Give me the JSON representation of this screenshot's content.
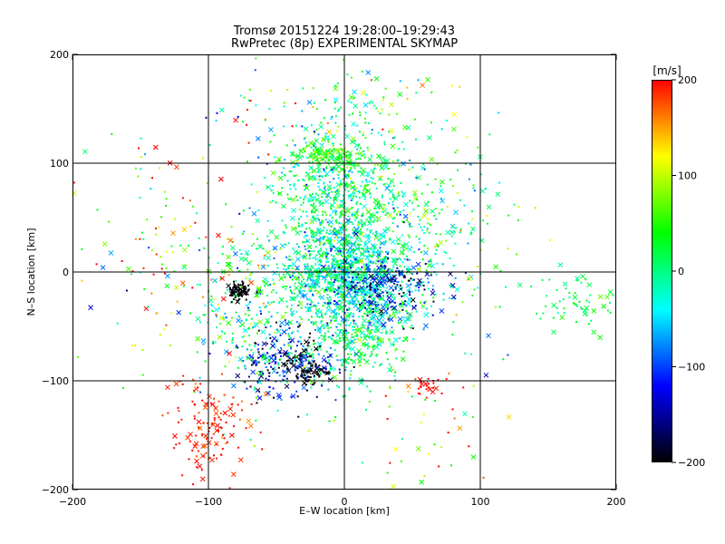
{
  "chart_data": {
    "type": "scatter",
    "title": "Tromsø 20151224 19:28:00–19:29:43",
    "subtitle": "RwPretec (8p) EXPERIMENTAL SKYMAP",
    "xlabel": "E–W location [km]",
    "ylabel": "N–S location [km]",
    "xlim": [
      -200,
      200
    ],
    "ylim": [
      -200,
      200
    ],
    "x_ticks": [
      -200,
      -100,
      0,
      100,
      200
    ],
    "y_ticks": [
      -200,
      -100,
      0,
      100,
      200
    ],
    "grid": true,
    "colorbar": {
      "label": "[m/s]",
      "range": [
        -200,
        200
      ],
      "ticks": [
        200,
        100,
        0,
        -100,
        -200
      ],
      "colors": [
        "#ff0000",
        "#ffff00",
        "#00ff00",
        "#00ffff",
        "#0000ff",
        "#000000"
      ]
    },
    "markers": [
      "x",
      "dot"
    ],
    "clusters": [
      {
        "x": 0,
        "y": 0,
        "sx": 25,
        "sy": 30,
        "n": 1100,
        "v": -20,
        "sv": 45
      },
      {
        "x": -8,
        "y": 80,
        "sx": 22,
        "sy": 30,
        "n": 500,
        "v": 10,
        "sv": 45
      },
      {
        "x": -15,
        "y": 108,
        "sx": 14,
        "sy": 4,
        "n": 120,
        "v": 50,
        "sv": 30
      },
      {
        "x": 10,
        "y": -60,
        "sx": 20,
        "sy": 28,
        "n": 300,
        "v": 20,
        "sv": 35
      },
      {
        "x": 30,
        "y": -15,
        "sx": 20,
        "sy": 15,
        "n": 250,
        "v": -120,
        "sv": 50
      },
      {
        "x": -40,
        "y": -82,
        "sx": 18,
        "sy": 16,
        "n": 250,
        "v": -140,
        "sv": 60
      },
      {
        "x": -70,
        "y": -40,
        "sx": 20,
        "sy": 40,
        "n": 250,
        "v": -5,
        "sv": 60
      },
      {
        "x": -78,
        "y": -17,
        "sx": 4,
        "sy": 4,
        "n": 70,
        "v": -200,
        "sv": 5
      },
      {
        "x": -28,
        "y": -90,
        "sx": 8,
        "sy": 6,
        "n": 60,
        "v": -200,
        "sv": 10
      },
      {
        "x": -100,
        "y": -140,
        "sx": 15,
        "sy": 25,
        "n": 130,
        "v": 190,
        "sv": 15
      },
      {
        "x": 170,
        "y": -30,
        "sx": 15,
        "sy": 15,
        "n": 60,
        "v": 20,
        "sv": 20
      },
      {
        "x": 60,
        "y": -105,
        "sx": 6,
        "sy": 6,
        "n": 25,
        "v": 195,
        "sv": 10
      },
      {
        "x": 40,
        "y": 50,
        "sx": 30,
        "sy": 40,
        "n": 200,
        "v": 10,
        "sv": 50
      },
      {
        "x": -120,
        "y": 20,
        "sx": 40,
        "sy": 50,
        "n": 150,
        "v": 80,
        "sv": 100
      },
      {
        "x": 80,
        "y": 20,
        "sx": 30,
        "sy": 50,
        "n": 120,
        "v": 0,
        "sv": 60
      },
      {
        "x": 20,
        "y": 150,
        "sx": 30,
        "sy": 20,
        "n": 80,
        "v": 40,
        "sv": 80
      },
      {
        "x": -60,
        "y": 140,
        "sx": 25,
        "sy": 30,
        "n": 40,
        "v": 60,
        "sv": 100
      },
      {
        "x": 70,
        "y": -150,
        "sx": 30,
        "sy": 30,
        "n": 40,
        "v": 100,
        "sv": 80
      }
    ]
  }
}
